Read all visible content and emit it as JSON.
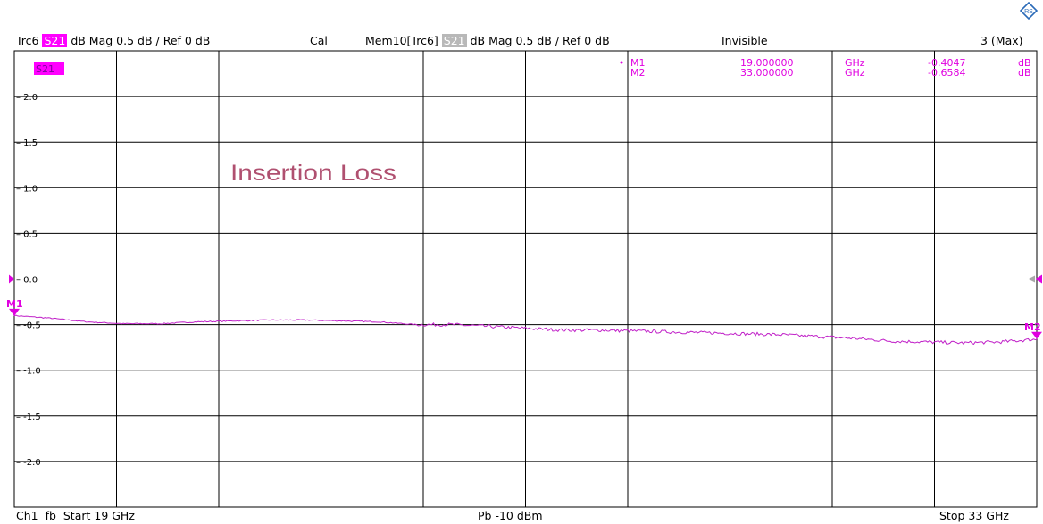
{
  "header": {
    "trace": "Trc6",
    "trace_param": "S21",
    "trace_format": "dB Mag",
    "trace_scale": "0.5 dB /",
    "trace_ref": "Ref 0 dB",
    "cal": "Cal",
    "mem": "Mem10[Trc6]",
    "mem_param": "S21",
    "mem_format": "dB Mag",
    "mem_scale": "0.5 dB /",
    "mem_ref": "Ref 0 dB",
    "mem_state": "Invisible",
    "max": "3 (Max)"
  },
  "footer": {
    "channel": "Ch1",
    "mode": "fb",
    "start": "Start  19 GHz",
    "power": "Pb  -10 dBm",
    "stop": "Stop  33 GHz"
  },
  "colors": {
    "trace": "#c020c8",
    "marker": "#e000e0",
    "annotation": "#b05070",
    "grid": "#000000",
    "ref_gray": "#a8a8a8"
  },
  "icons": {
    "logo": "rohde-schwarz-logo"
  },
  "chart_data": {
    "type": "line",
    "title": "",
    "annotation": "Insertion Loss",
    "trace_label": "S21",
    "xlabel": "",
    "ylabel": "",
    "xlim": [
      19,
      33
    ],
    "ylim": [
      -2.5,
      2.5
    ],
    "x_unit": "GHz",
    "y_unit": "dB",
    "grid": true,
    "y_ticks": [
      2.0,
      1.5,
      1.0,
      0.5,
      0.0,
      -0.5,
      -1.0,
      -1.5,
      -2.0
    ],
    "y_tick_labels": [
      "2.0",
      "1.5",
      "1.0",
      "0.5",
      "0.0",
      "-0.5",
      "-1.0",
      "-1.5",
      "-2.0"
    ],
    "series": [
      {
        "name": "S21",
        "x": [
          19,
          19.5,
          20,
          20.5,
          21,
          21.5,
          22,
          22.5,
          23,
          23.5,
          24,
          24.5,
          25,
          25.5,
          26,
          26.5,
          27,
          27.5,
          28,
          28.5,
          29,
          29.5,
          30,
          30.5,
          31,
          31.5,
          32,
          32.5,
          33
        ],
        "y": [
          -0.4,
          -0.43,
          -0.47,
          -0.49,
          -0.49,
          -0.47,
          -0.46,
          -0.45,
          -0.45,
          -0.46,
          -0.47,
          -0.5,
          -0.5,
          -0.52,
          -0.54,
          -0.56,
          -0.56,
          -0.57,
          -0.58,
          -0.59,
          -0.6,
          -0.61,
          -0.63,
          -0.65,
          -0.68,
          -0.69,
          -0.7,
          -0.69,
          -0.66
        ]
      }
    ],
    "markers": [
      {
        "label": "M1",
        "x": 19,
        "y": -0.4047,
        "freq": "19.000000",
        "freq_unit": "GHz",
        "value": "-0.4047",
        "value_unit": "dB"
      },
      {
        "label": "M2",
        "x": 33,
        "y": -0.6584,
        "freq": "33.000000",
        "freq_unit": "GHz",
        "value": "-0.6584",
        "value_unit": "dB"
      }
    ],
    "reference_level": 0
  }
}
